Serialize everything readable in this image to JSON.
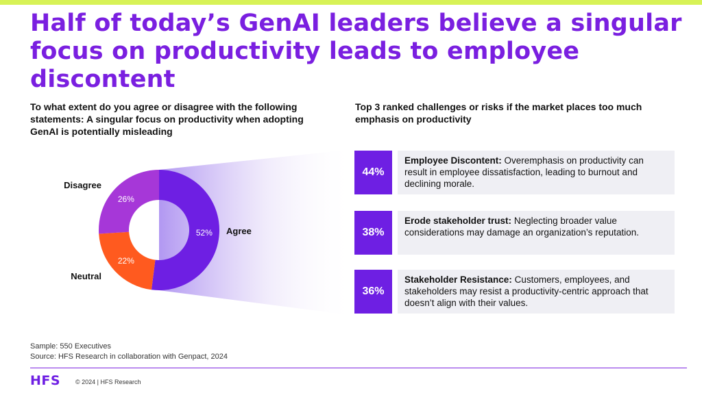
{
  "headline": "Half of today’s GenAI leaders believe a singular focus on productivity leads to employee discontent",
  "question": "To what extent do you agree or disagree with the following statements: A singular focus on productivity when adopting GenAI is potentially misleading",
  "challenges_heading": "Top 3 ranked challenges or risks if the market places too much emphasis on productivity",
  "challenges": [
    {
      "pct": "44%",
      "title": "Employee Discontent:",
      "text": "Overemphasis on productivity can result in employee dissatisfaction, leading to burnout and declining morale."
    },
    {
      "pct": "38%",
      "title": "Erode stakeholder trust:",
      "text": "Neglecting broader value considerations may damage an organization’s reputation."
    },
    {
      "pct": "36%",
      "title": "Stakeholder Resistance:",
      "text": "Customers, employees, and stakeholders may resist a productivity-centric approach that doesn’t align with their values."
    }
  ],
  "notes": {
    "sample": "Sample: 550 Executives",
    "source": "Source: HFS Research in collaboration with Genpact, 2024"
  },
  "footer": {
    "logo": "HFS",
    "copyright": "© 2024 | HFS Research"
  },
  "colors": {
    "brand_purple": "#7a1fe0",
    "accent_lime": "#d7f257"
  },
  "chart_data": {
    "type": "pie",
    "donut": true,
    "title": "",
    "categories": [
      "Agree",
      "Neutral",
      "Disagree"
    ],
    "values": [
      52,
      22,
      26
    ],
    "value_labels": [
      "52%",
      "22%",
      "26%"
    ],
    "unit": "%",
    "colors": [
      "#6e1fe3",
      "#ff5a1f",
      "#a637d8"
    ]
  }
}
